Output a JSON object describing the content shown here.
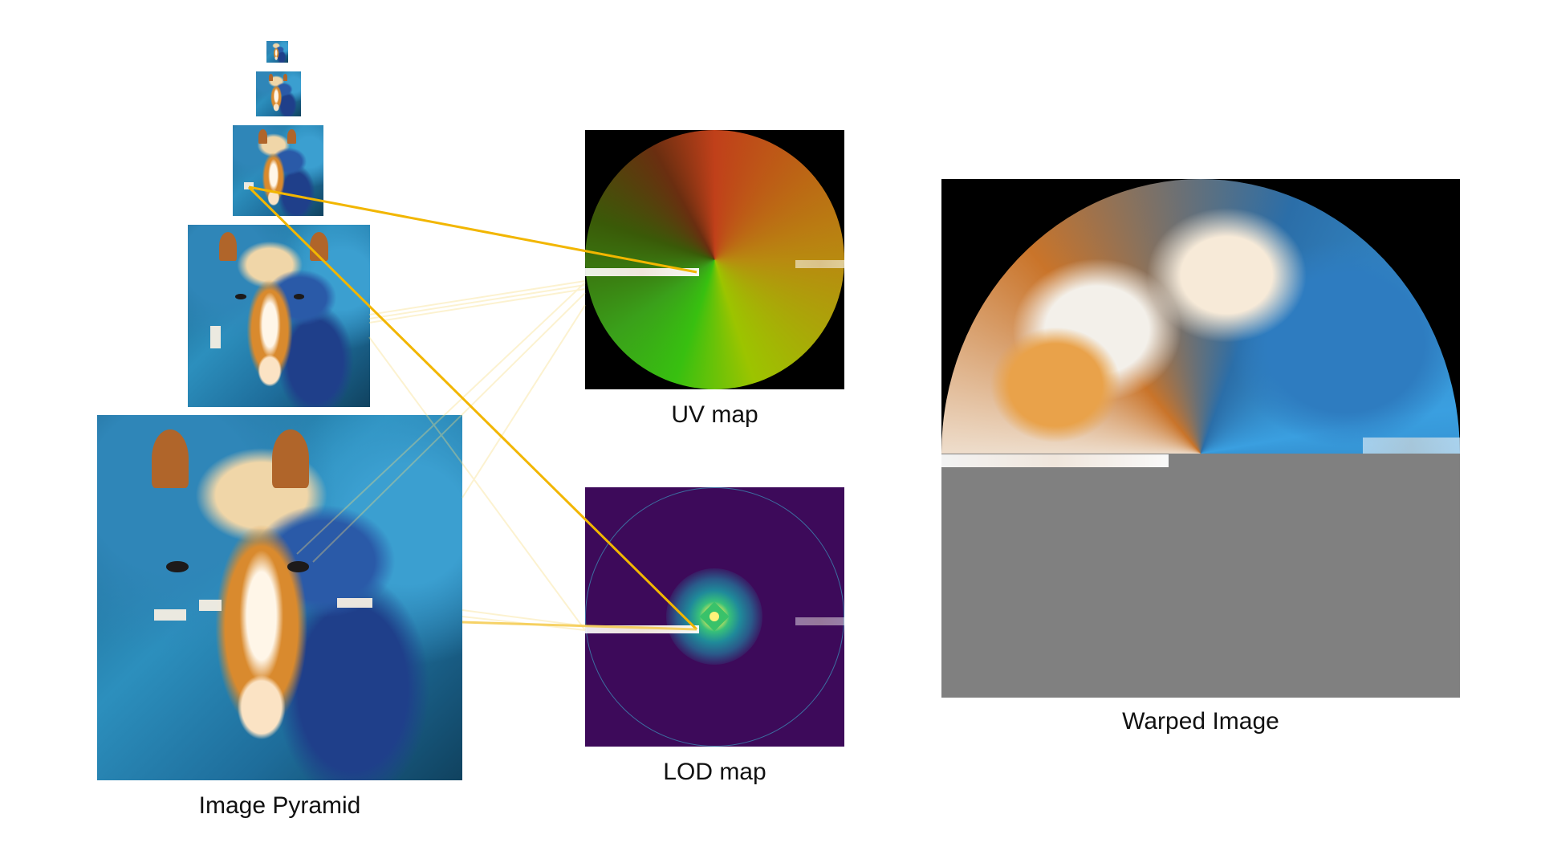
{
  "labels": {
    "pyramid": "Image Pyramid",
    "uv_map": "UV map",
    "lod_map": "LOD map",
    "warped": "Warped Image"
  },
  "colors": {
    "connector": "#f2b600",
    "connector_faint": "#f8dc7a",
    "gray_fill": "#808080",
    "lod_background": "#3d0a5a"
  },
  "pyramid_levels": 5
}
